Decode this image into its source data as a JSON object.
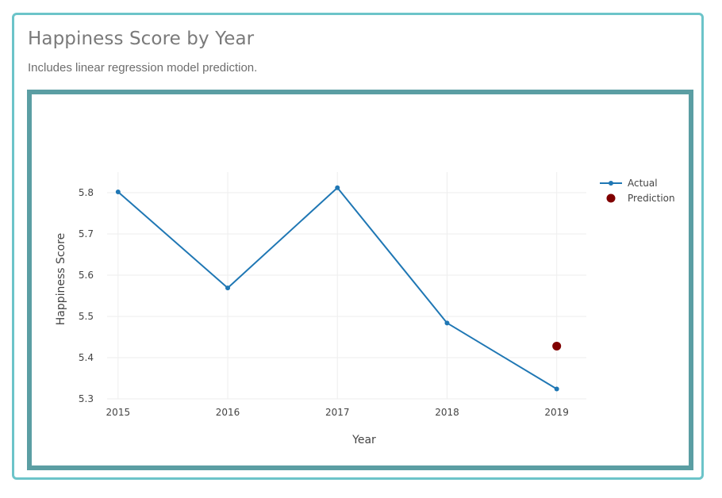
{
  "card": {
    "title": "Happiness Score by Year",
    "subtitle": "Includes linear regression model prediction."
  },
  "colors": {
    "card_border": "#6cc4c9",
    "plot_border": "#5b9ea3",
    "actual_line": "#1f77b4",
    "prediction_marker": "#800000",
    "grid": "#eeeeee"
  },
  "chart_data": {
    "type": "line",
    "xlabel": "Year",
    "ylabel": "Happiness Score",
    "x": [
      2015,
      2016,
      2017,
      2018,
      2019
    ],
    "xlim": [
      2014.9,
      2019.27
    ],
    "ylim": [
      5.3,
      5.85
    ],
    "yticks": [
      5.3,
      5.4,
      5.5,
      5.6,
      5.7,
      5.8
    ],
    "yticklabels": [
      "5.3",
      "5.4",
      "5.5",
      "5.6",
      "5.7",
      "5.8"
    ],
    "xticklabels": [
      "2015",
      "2016",
      "2017",
      "2018",
      "2019"
    ],
    "grid": true,
    "legend_position": "top-right",
    "series": [
      {
        "name": "Actual",
        "mode": "lines+markers",
        "color": "#1f77b4",
        "x": [
          2015,
          2016,
          2017,
          2018,
          2019
        ],
        "y": [
          5.802,
          5.569,
          5.812,
          5.484,
          5.324
        ]
      },
      {
        "name": "Prediction",
        "mode": "markers",
        "color": "#800000",
        "x": [
          2019
        ],
        "y": [
          5.428
        ]
      }
    ]
  }
}
